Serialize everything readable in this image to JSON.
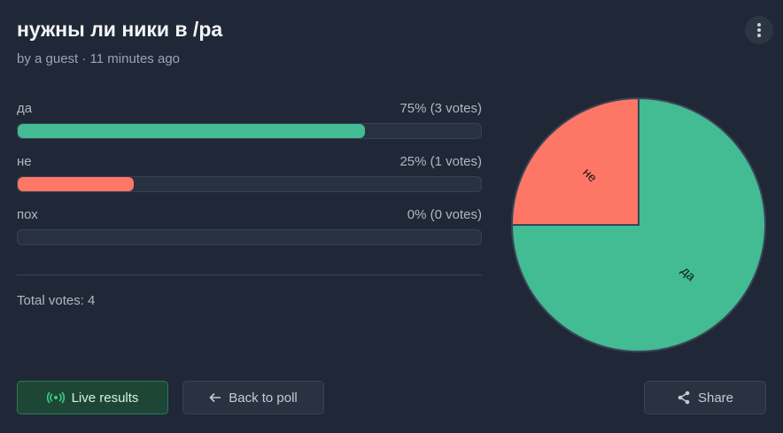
{
  "header": {
    "title": "нужны ли ники в /ра",
    "byline": "by a guest · 11 minutes ago"
  },
  "options": [
    {
      "label": "да",
      "result": "75% (3 votes)",
      "percent": 75,
      "color": "#43bb93"
    },
    {
      "label": "не",
      "result": "25% (1 votes)",
      "percent": 25,
      "color": "#fe7766"
    },
    {
      "label": "пох",
      "result": "0% (0 votes)",
      "percent": 0
    }
  ],
  "total": "Total votes: 4",
  "buttons": {
    "live": "Live results",
    "back": "Back to poll",
    "share": "Share"
  }
}
